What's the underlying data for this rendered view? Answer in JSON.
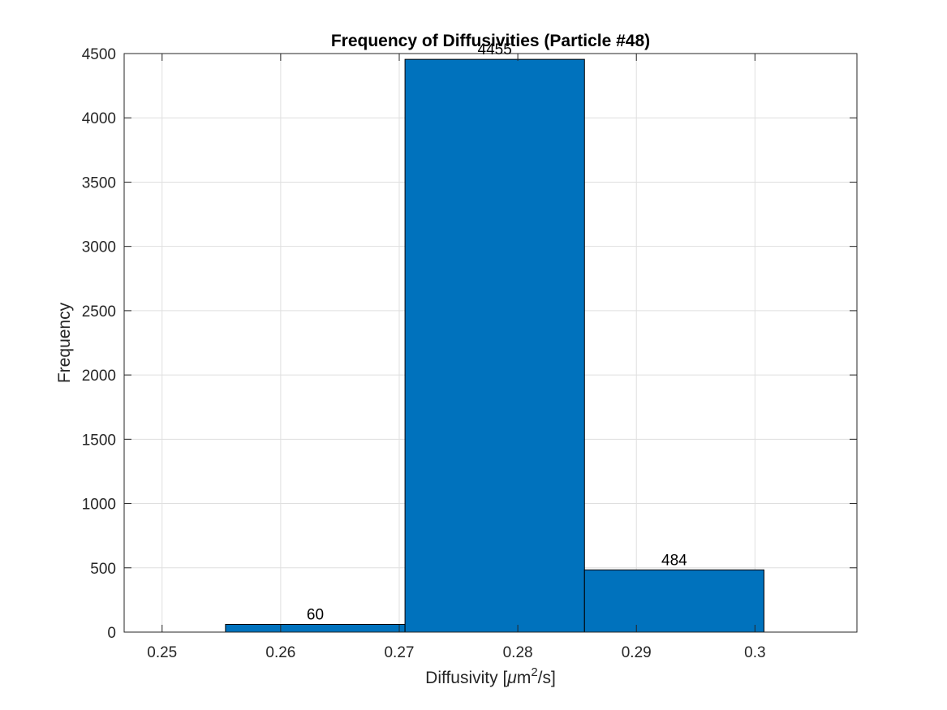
{
  "chart_data": {
    "type": "bar",
    "title": "Frequency of Diffusivities (Particle #48)",
    "xlabel_prefix": "Diffusivity [",
    "xlabel_mu": "μ",
    "xlabel_unit": "m",
    "xlabel_sup": "2",
    "xlabel_suffix": "/s]",
    "ylabel": "Frequency",
    "x": [
      0.262917,
      0.278055,
      0.293193
    ],
    "values": [
      60,
      4455,
      484
    ],
    "bar_width": 0.015138,
    "data_labels": [
      "60",
      "4455",
      "484"
    ],
    "xlim": [
      0.2468,
      0.3086
    ],
    "ylim": [
      0,
      4500
    ],
    "xticks": [
      0.25,
      0.26,
      0.27,
      0.28,
      0.29,
      0.3
    ],
    "xtick_labels": [
      "0.25",
      "0.26",
      "0.27",
      "0.28",
      "0.29",
      "0.3"
    ],
    "yticks": [
      0,
      500,
      1000,
      1500,
      2000,
      2500,
      3000,
      3500,
      4000,
      4500
    ],
    "ytick_labels": [
      "0",
      "500",
      "1000",
      "1500",
      "2000",
      "2500",
      "3000",
      "3500",
      "4000",
      "4500"
    ],
    "grid": true,
    "bar_color": "#0072BD",
    "bar_edge_color": "#000000",
    "grid_color": "#dfdfdf",
    "axis_color": "#262626"
  }
}
